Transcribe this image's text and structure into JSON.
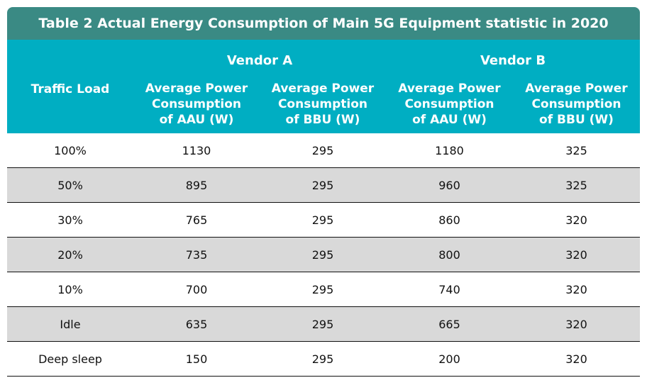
{
  "table": {
    "title": "Table 2 Actual Energy Consumption of Main 5G Equipment statistic in 2020",
    "header": {
      "traffic_load": "Traffic Load",
      "vendors": [
        "Vendor A",
        "Vendor B"
      ],
      "sub_headers": [
        [
          "Average Power",
          "Consumption",
          "of AAU (W)"
        ],
        [
          "Average Power",
          "Consumption",
          "of BBU (W)"
        ],
        [
          "Average Power",
          "Consumption",
          "of AAU (W)"
        ],
        [
          "Average Power",
          "Consumption",
          "of BBU (W)"
        ]
      ]
    },
    "rows": [
      {
        "load": "100%",
        "a_aau": "1130",
        "a_bbu": "295",
        "b_aau": "1180",
        "b_bbu": "325"
      },
      {
        "load": "50%",
        "a_aau": "895",
        "a_bbu": "295",
        "b_aau": "960",
        "b_bbu": "325"
      },
      {
        "load": "30%",
        "a_aau": "765",
        "a_bbu": "295",
        "b_aau": "860",
        "b_bbu": "320"
      },
      {
        "load": "20%",
        "a_aau": "735",
        "a_bbu": "295",
        "b_aau": "800",
        "b_bbu": "320"
      },
      {
        "load": "10%",
        "a_aau": "700",
        "a_bbu": "295",
        "b_aau": "740",
        "b_bbu": "320"
      },
      {
        "load": "Idle",
        "a_aau": "635",
        "a_bbu": "295",
        "b_aau": "665",
        "b_bbu": "320"
      },
      {
        "load": "Deep sleep",
        "a_aau": "150",
        "a_bbu": "295",
        "b_aau": "200",
        "b_bbu": "320"
      }
    ],
    "colors": {
      "title_bg": "#3a8a84",
      "header_bg": "#00aec2",
      "shaded_row_bg": "#d9d9d9"
    }
  }
}
